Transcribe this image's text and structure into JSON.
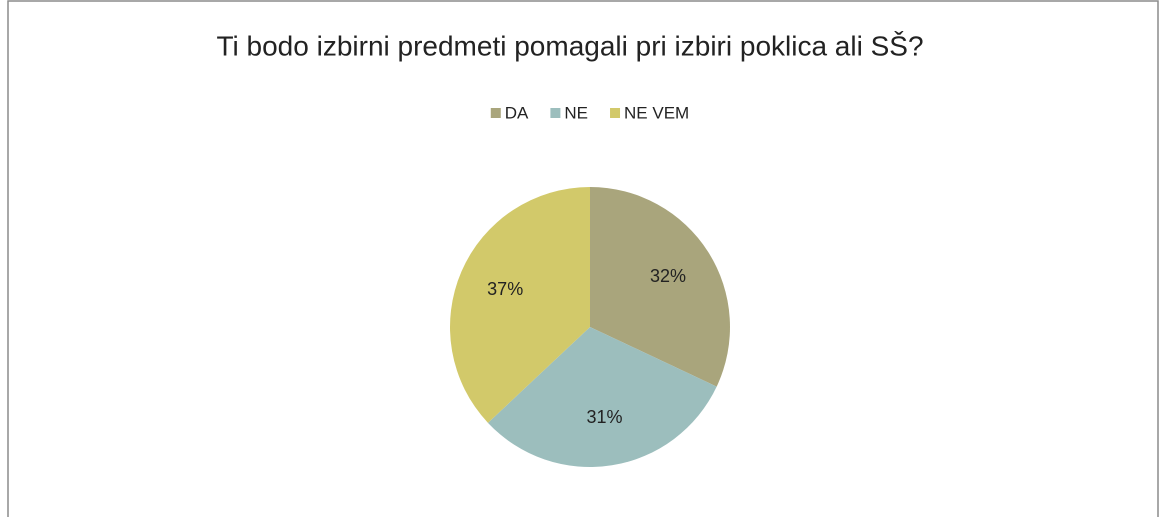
{
  "chart_data": {
    "type": "pie",
    "title": "Ti bodo izbirni predmeti pomagali pri izbiri poklica ali SŠ?",
    "categories": [
      "DA",
      "NE",
      "NE VEM"
    ],
    "values": [
      32,
      31,
      37
    ],
    "value_labels": [
      "32%",
      "31%",
      "37%"
    ],
    "colors": [
      "#a9a57c",
      "#9cbebd",
      "#d2c96a"
    ],
    "legend": "top"
  }
}
